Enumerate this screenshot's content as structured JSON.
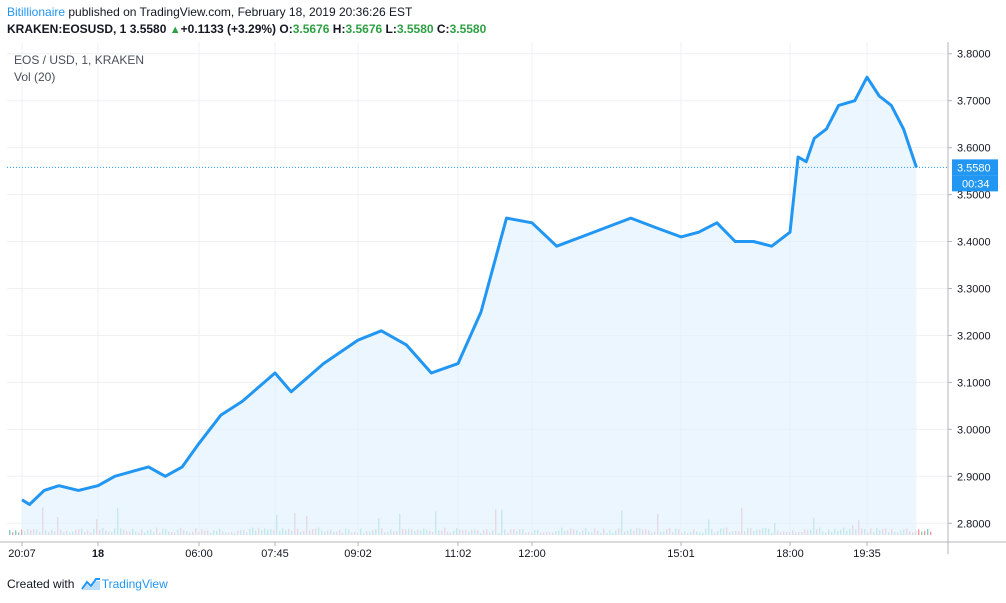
{
  "header": {
    "publisher": "Bitillionaire",
    "published_text": " published on TradingView.com, February 18, 2019 20:36:26 EST"
  },
  "quote": {
    "symbol": "KRAKEN:EOSUSD, 1",
    "last": "3.5580",
    "change_arrow": "▲",
    "change": "+0.1133 (+3.29%)",
    "o_label": "O:",
    "o_value": "3.5676",
    "h_label": "H:",
    "h_value": "3.5676",
    "l_label": "L:",
    "l_value": "3.5580",
    "c_label": "C:",
    "c_value": "3.5580"
  },
  "legend": {
    "series": "EOS / USD, 1, KRAKEN",
    "volume": "Vol (20)"
  },
  "price_badge": {
    "price": "3.5580",
    "countdown": "00:34"
  },
  "footer": {
    "created_with": "Created with",
    "brand": "TradingView"
  },
  "colors": {
    "line": "#2196f3",
    "area": "#e3f2fd",
    "up_volume": "#7fcfc0",
    "down_volume": "#f19a9d",
    "last_price": "#2196f3"
  },
  "chart_data": {
    "type": "area",
    "title": "EOS / USD, 1, KRAKEN",
    "xlabel": "",
    "ylabel": "",
    "x_ticks": [
      "20:07",
      "18",
      "06:00",
      "07:45",
      "09:02",
      "11:02",
      "12:00",
      "15:01",
      "18:00",
      "19:35"
    ],
    "y_ticks": [
      "2.8000",
      "2.9000",
      "3.0000",
      "3.1000",
      "3.2000",
      "3.3000",
      "3.4000",
      "3.5000",
      "3.6000",
      "3.7000",
      "3.8000"
    ],
    "ylim": [
      2.775,
      3.825
    ],
    "grid": true,
    "last_value": 3.558,
    "series": [
      {
        "x": [
          "20:07",
          "20:30",
          "21:15",
          "22:00",
          "23:00",
          "18",
          "01:00",
          "02:00",
          "03:00",
          "04:00",
          "05:00",
          "06:00",
          "06:30",
          "07:00",
          "07:45",
          "08:00",
          "08:30",
          "09:02",
          "09:30",
          "10:00",
          "10:30",
          "11:02",
          "11:20",
          "11:40",
          "12:00",
          "12:30",
          "13:00",
          "13:30",
          "14:00",
          "14:30",
          "15:01",
          "15:30",
          "16:00",
          "16:30",
          "17:00",
          "17:30",
          "18:00",
          "18:10",
          "18:20",
          "18:30",
          "18:45",
          "19:00",
          "19:20",
          "19:35",
          "19:50",
          "20:05",
          "20:20",
          "20:36"
        ],
        "values": [
          2.85,
          2.84,
          2.87,
          2.88,
          2.87,
          2.88,
          2.9,
          2.91,
          2.92,
          2.9,
          2.92,
          2.97,
          3.03,
          3.06,
          3.12,
          3.08,
          3.14,
          3.19,
          3.21,
          3.18,
          3.12,
          3.14,
          3.25,
          3.45,
          3.44,
          3.39,
          3.41,
          3.43,
          3.45,
          3.43,
          3.41,
          3.42,
          3.44,
          3.4,
          3.4,
          3.39,
          3.42,
          3.58,
          3.57,
          3.62,
          3.64,
          3.69,
          3.7,
          3.75,
          3.71,
          3.69,
          3.64,
          3.558
        ]
      }
    ]
  }
}
